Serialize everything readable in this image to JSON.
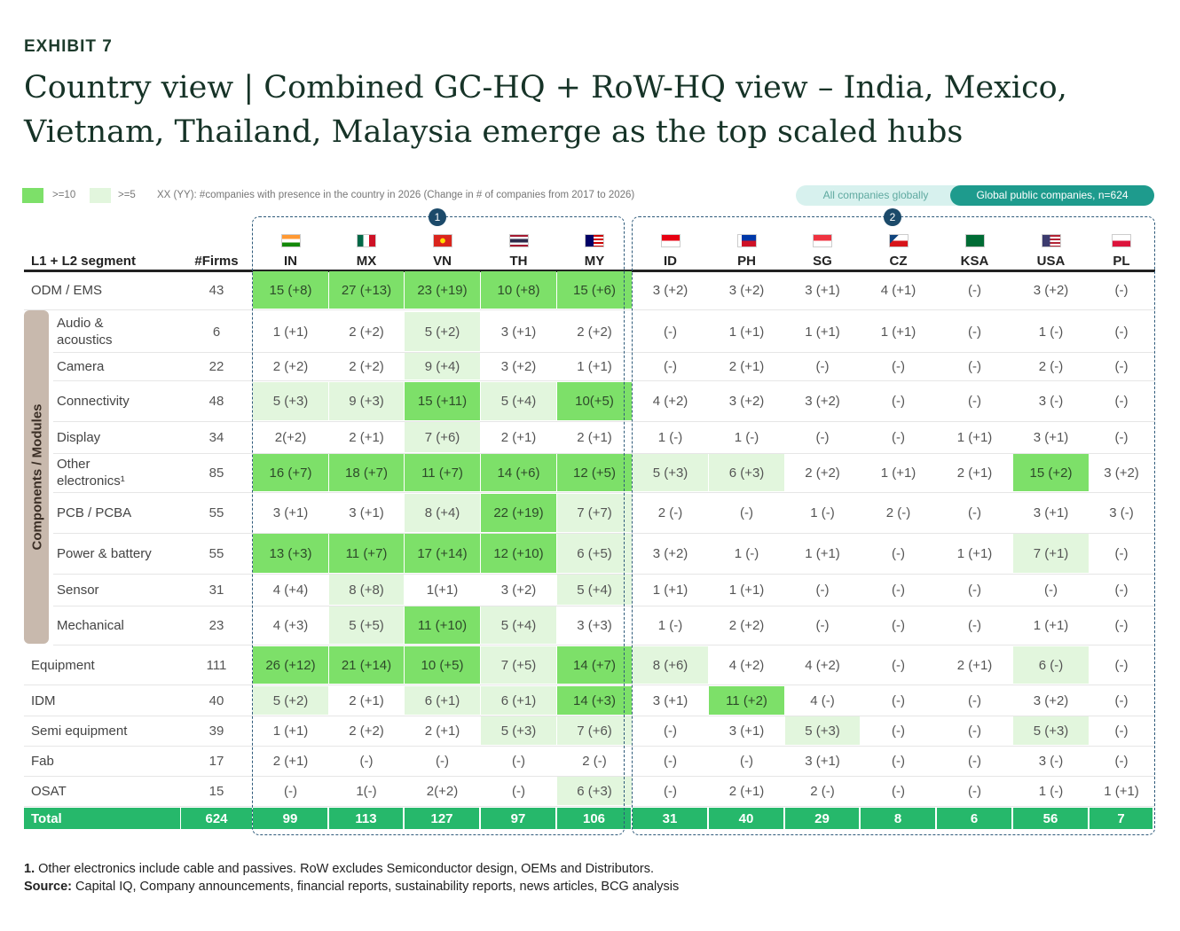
{
  "exhibit": "EXHIBIT 7",
  "title": "Country view | Combined GC-HQ + RoW-HQ view – India, Mexico, Vietnam, Thailand, Malaysia emerge as the top scaled hubs",
  "legend": {
    "dark_label": ">=10",
    "light_label": ">=5",
    "note": "XX (YY): #companies with presence in the country in 2026 (Change in # of companies from 2017 to 2026)",
    "dark_color": "#7de069",
    "light_color": "#e2f6dd"
  },
  "toggle": {
    "option_a": "All companies globally",
    "option_b": "Global public companies, n=624"
  },
  "groups": {
    "group1": "1",
    "group2": "2"
  },
  "colors": {
    "total_bar": "#26b86b",
    "band": "#c8b9ad",
    "group_border": "#2e5a7a"
  },
  "chart_data": {
    "type": "table",
    "header": {
      "segment": "L1 + L2 segment",
      "firms": "#Firms"
    },
    "component_group_label": "Components / Modules",
    "countries": [
      "IN",
      "MX",
      "VN",
      "TH",
      "MY",
      "ID",
      "PH",
      "SG",
      "CZ",
      "KSA",
      "USA",
      "PL"
    ],
    "country_flags": [
      "flag-india-icon",
      "flag-mexico-icon",
      "flag-vietnam-icon",
      "flag-thailand-icon",
      "flag-malaysia-icon",
      "flag-indonesia-icon",
      "flag-philippines-icon",
      "flag-singapore-icon",
      "flag-czechia-icon",
      "flag-saudi-arabia-icon",
      "flag-usa-icon",
      "flag-poland-icon"
    ],
    "rows": [
      {
        "segment": "ODM / EMS",
        "firms": "43",
        "indent": false,
        "values": [
          "15 (+8)",
          "27 (+13)",
          "23 (+19)",
          "10 (+8)",
          "15 (+6)",
          "3 (+2)",
          "3 (+2)",
          "3 (+1)",
          "4 (+1)",
          "(-)",
          "3 (+2)",
          "(-)"
        ],
        "shade": [
          2,
          2,
          2,
          2,
          2,
          0,
          0,
          0,
          0,
          0,
          0,
          0
        ]
      },
      {
        "segment": "Audio & acoustics",
        "firms": "6",
        "indent": true,
        "values": [
          "1 (+1)",
          "2 (+2)",
          "5 (+2)",
          "3 (+1)",
          "2 (+2)",
          "(-)",
          "1 (+1)",
          "1 (+1)",
          "1 (+1)",
          "(-)",
          "1 (-)",
          "(-)"
        ],
        "shade": [
          0,
          0,
          1,
          0,
          0,
          0,
          0,
          0,
          0,
          0,
          0,
          0
        ]
      },
      {
        "segment": "Camera",
        "firms": "22",
        "indent": true,
        "values": [
          "2 (+2)",
          "2 (+2)",
          "9 (+4)",
          "3 (+2)",
          "1 (+1)",
          "(-)",
          "2 (+1)",
          "(-)",
          "(-)",
          "(-)",
          "2 (-)",
          "(-)"
        ],
        "shade": [
          0,
          0,
          1,
          0,
          0,
          0,
          0,
          0,
          0,
          0,
          0,
          0
        ]
      },
      {
        "segment": "Connectivity",
        "firms": "48",
        "indent": true,
        "values": [
          "5 (+3)",
          "9 (+3)",
          "15 (+11)",
          "5 (+4)",
          "10(+5)",
          "4 (+2)",
          "3 (+2)",
          "3 (+2)",
          "(-)",
          "(-)",
          "3 (-)",
          "(-)"
        ],
        "shade": [
          1,
          1,
          2,
          1,
          2,
          0,
          0,
          0,
          0,
          0,
          0,
          0
        ]
      },
      {
        "segment": "Display",
        "firms": "34",
        "indent": true,
        "values": [
          "2(+2)",
          "2 (+1)",
          "7 (+6)",
          "2 (+1)",
          "2 (+1)",
          "1 (-)",
          "1 (-)",
          "(-)",
          "(-)",
          "1 (+1)",
          "3 (+1)",
          "(-)"
        ],
        "shade": [
          0,
          0,
          1,
          0,
          0,
          0,
          0,
          0,
          0,
          0,
          0,
          0
        ]
      },
      {
        "segment": "Other electronics¹",
        "firms": "85",
        "indent": true,
        "values": [
          "16 (+7)",
          "18 (+7)",
          "11 (+7)",
          "14 (+6)",
          "12 (+5)",
          "5 (+3)",
          "6 (+3)",
          "2 (+2)",
          "1 (+1)",
          "2 (+1)",
          "15 (+2)",
          "3 (+2)"
        ],
        "shade": [
          2,
          2,
          2,
          2,
          2,
          1,
          1,
          0,
          0,
          0,
          2,
          0
        ]
      },
      {
        "segment": "PCB / PCBA",
        "firms": "55",
        "indent": true,
        "values": [
          "3 (+1)",
          "3 (+1)",
          "8 (+4)",
          "22 (+19)",
          "7 (+7)",
          "2 (-)",
          "(-)",
          "1 (-)",
          "2 (-)",
          "(-)",
          "3 (+1)",
          "3 (-)"
        ],
        "shade": [
          0,
          0,
          1,
          2,
          1,
          0,
          0,
          0,
          0,
          0,
          0,
          0
        ]
      },
      {
        "segment": "Power & battery",
        "firms": "55",
        "indent": true,
        "values": [
          "13 (+3)",
          "11 (+7)",
          "17 (+14)",
          "12 (+10)",
          "6 (+5)",
          "3 (+2)",
          "1 (-)",
          "1 (+1)",
          "(-)",
          "1 (+1)",
          "7 (+1)",
          "(-)"
        ],
        "shade": [
          2,
          2,
          2,
          2,
          1,
          0,
          0,
          0,
          0,
          0,
          1,
          0
        ]
      },
      {
        "segment": "Sensor",
        "firms": "31",
        "indent": true,
        "values": [
          "4 (+4)",
          "8 (+8)",
          "1(+1)",
          "3 (+2)",
          "5 (+4)",
          "1 (+1)",
          "1 (+1)",
          "(-)",
          "(-)",
          "(-)",
          "(-)",
          "(-)"
        ],
        "shade": [
          0,
          1,
          0,
          0,
          1,
          0,
          0,
          0,
          0,
          0,
          0,
          0
        ]
      },
      {
        "segment": "Mechanical",
        "firms": "23",
        "indent": true,
        "values": [
          "4 (+3)",
          "5 (+5)",
          "11 (+10)",
          "5 (+4)",
          "3 (+3)",
          "1 (-)",
          "2 (+2)",
          "(-)",
          "(-)",
          "(-)",
          "1 (+1)",
          "(-)"
        ],
        "shade": [
          0,
          1,
          2,
          1,
          0,
          0,
          0,
          0,
          0,
          0,
          0,
          0
        ]
      },
      {
        "segment": "Equipment",
        "firms": "111",
        "indent": false,
        "values": [
          "26 (+12)",
          "21 (+14)",
          "10 (+5)",
          "7 (+5)",
          "14 (+7)",
          "8 (+6)",
          "4 (+2)",
          "4 (+2)",
          "(-)",
          "2 (+1)",
          "6 (-)",
          "(-)"
        ],
        "shade": [
          2,
          2,
          2,
          1,
          2,
          1,
          0,
          0,
          0,
          0,
          1,
          0
        ]
      },
      {
        "segment": "IDM",
        "firms": "40",
        "indent": false,
        "values": [
          "5 (+2)",
          "2 (+1)",
          "6 (+1)",
          "6 (+1)",
          "14 (+3)",
          "3 (+1)",
          "11 (+2)",
          "4 (-)",
          "(-)",
          "(-)",
          "3 (+2)",
          "(-)"
        ],
        "shade": [
          1,
          0,
          1,
          1,
          2,
          0,
          2,
          0,
          0,
          0,
          0,
          0
        ]
      },
      {
        "segment": "Semi equipment",
        "firms": "39",
        "indent": false,
        "values": [
          "1 (+1)",
          "2 (+2)",
          "2 (+1)",
          "5 (+3)",
          "7 (+6)",
          "(-)",
          "3 (+1)",
          "5 (+3)",
          "(-)",
          "(-)",
          "5 (+3)",
          "(-)"
        ],
        "shade": [
          0,
          0,
          0,
          1,
          1,
          0,
          0,
          1,
          0,
          0,
          1,
          0
        ]
      },
      {
        "segment": "Fab",
        "firms": "17",
        "indent": false,
        "values": [
          "2 (+1)",
          "(-)",
          "(-)",
          "(-)",
          "2 (-)",
          "(-)",
          "(-)",
          "3 (+1)",
          "(-)",
          "(-)",
          "3 (-)",
          "(-)"
        ],
        "shade": [
          0,
          0,
          0,
          0,
          0,
          0,
          0,
          0,
          0,
          0,
          0,
          0
        ]
      },
      {
        "segment": "OSAT",
        "firms": "15",
        "indent": false,
        "values": [
          "(-)",
          "1(-)",
          "2(+2)",
          "(-)",
          "6 (+3)",
          "(-)",
          "2 (+1)",
          "2 (-)",
          "(-)",
          "(-)",
          "1 (-)",
          "1 (+1)"
        ],
        "shade": [
          0,
          0,
          0,
          0,
          1,
          0,
          0,
          0,
          0,
          0,
          0,
          0
        ]
      }
    ],
    "total": {
      "segment": "Total",
      "firms": "624",
      "values": [
        "99",
        "113",
        "127",
        "97",
        "106",
        "31",
        "40",
        "29",
        "8",
        "6",
        "56",
        "7"
      ]
    }
  },
  "footnote": {
    "note_num": "1.",
    "note_text": "Other electronics include cable and passives. RoW excludes Semiconductor design, OEMs and Distributors.",
    "source_label": "Source:",
    "source_text": "Capital IQ, Company announcements, financial reports, sustainability reports, news articles, BCG analysis"
  }
}
